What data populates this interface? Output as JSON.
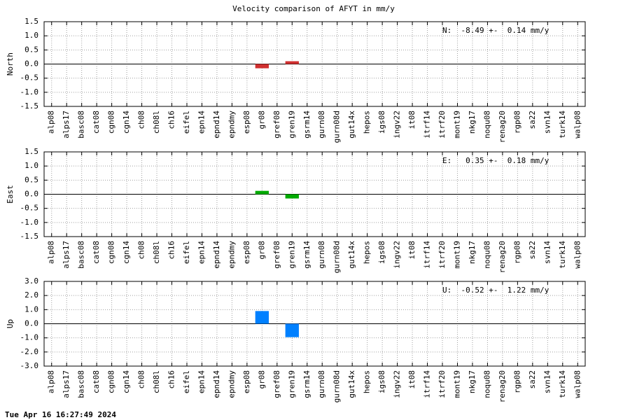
{
  "title": "Velocity comparison of AFYT in mm/y",
  "footer": "Tue Apr 16 16:27:49 2024",
  "chart_data": [
    {
      "type": "bar",
      "ylabel": "North",
      "annotation": "N:  -8.49 +-  0.14 mm/y",
      "categories": [
        "alp08",
        "alps17",
        "basc08",
        "cat08",
        "cgn08",
        "cgn14",
        "ch08",
        "ch08l",
        "ch16",
        "eifel",
        "epn14",
        "epnd14",
        "epndmy",
        "esp08",
        "gr08",
        "gref08",
        "gren19",
        "gsrm14",
        "gurn08",
        "gurn08d",
        "gut14x",
        "hepos",
        "igs08",
        "ingv22",
        "it08",
        "itrf14",
        "itrf20",
        "mont19",
        "nkg17",
        "noqu08",
        "renag20",
        "rgp08",
        "sa22",
        "svn14",
        "turk14",
        "walp08"
      ],
      "values": [
        null,
        null,
        null,
        null,
        null,
        null,
        null,
        null,
        null,
        null,
        null,
        null,
        null,
        null,
        -0.15,
        null,
        0.1,
        null,
        null,
        null,
        null,
        null,
        null,
        null,
        null,
        null,
        null,
        null,
        null,
        null,
        null,
        null,
        null,
        null,
        null,
        null
      ],
      "color": "#d03030",
      "ylim": [
        -1.5,
        1.5
      ],
      "yticks": [
        {
          "value": 1.5,
          "label": "1.5"
        },
        {
          "value": 1,
          "label": "1.0"
        },
        {
          "value": 0.5,
          "label": "0.5"
        },
        {
          "value": 0,
          "label": "0.0"
        },
        {
          "value": -0.5,
          "label": "-0.5"
        },
        {
          "value": -1,
          "label": "-1.0"
        },
        {
          "value": -1.5,
          "label": "-1.5"
        }
      ],
      "grid": true
    },
    {
      "type": "bar",
      "ylabel": "East",
      "annotation": "E:   0.35 +-  0.18 mm/y",
      "categories": [
        "alp08",
        "alps17",
        "basc08",
        "cat08",
        "cgn08",
        "cgn14",
        "ch08",
        "ch08l",
        "ch16",
        "eifel",
        "epn14",
        "epnd14",
        "epndmy",
        "esp08",
        "gr08",
        "gref08",
        "gren19",
        "gsrm14",
        "gurn08",
        "gurn08d",
        "gut14x",
        "hepos",
        "igs08",
        "ingv22",
        "it08",
        "itrf14",
        "itrf20",
        "mont19",
        "nkg17",
        "noqu08",
        "renag20",
        "rgp08",
        "sa22",
        "svn14",
        "turk14",
        "walp08"
      ],
      "values": [
        null,
        null,
        null,
        null,
        null,
        null,
        null,
        null,
        null,
        null,
        null,
        null,
        null,
        null,
        0.12,
        null,
        -0.15,
        null,
        null,
        null,
        null,
        null,
        null,
        null,
        null,
        null,
        null,
        null,
        null,
        null,
        null,
        null,
        null,
        null,
        null,
        null
      ],
      "color": "#00aa00",
      "ylim": [
        -1.5,
        1.5
      ],
      "yticks": [
        {
          "value": 1.5,
          "label": "1.5"
        },
        {
          "value": 1,
          "label": "1.0"
        },
        {
          "value": 0.5,
          "label": "0.5"
        },
        {
          "value": 0,
          "label": "0.0"
        },
        {
          "value": -0.5,
          "label": "-0.5"
        },
        {
          "value": -1,
          "label": "-1.0"
        },
        {
          "value": -1.5,
          "label": "-1.5"
        }
      ],
      "grid": true
    },
    {
      "type": "bar",
      "ylabel": "Up",
      "annotation": "U:  -0.52 +-  1.22 mm/y",
      "categories": [
        "alp08",
        "alps17",
        "basc08",
        "cat08",
        "cgn08",
        "cgn14",
        "ch08",
        "ch08l",
        "ch16",
        "eifel",
        "epn14",
        "epnd14",
        "epndmy",
        "esp08",
        "gr08",
        "gref08",
        "gren19",
        "gsrm14",
        "gurn08",
        "gurn08d",
        "gut14x",
        "hepos",
        "igs08",
        "ingv22",
        "it08",
        "itrf14",
        "itrf20",
        "mont19",
        "nkg17",
        "noqu08",
        "renag20",
        "rgp08",
        "sa22",
        "svn14",
        "turk14",
        "walp08"
      ],
      "values": [
        null,
        null,
        null,
        null,
        null,
        null,
        null,
        null,
        null,
        null,
        null,
        null,
        null,
        null,
        0.9,
        null,
        -0.95,
        null,
        null,
        null,
        null,
        null,
        null,
        null,
        null,
        null,
        null,
        null,
        null,
        null,
        null,
        null,
        null,
        null,
        null,
        null
      ],
      "color": "#0080ff",
      "ylim": [
        -3,
        3
      ],
      "yticks": [
        {
          "value": 3,
          "label": "3.0"
        },
        {
          "value": 2,
          "label": "2.0"
        },
        {
          "value": 1,
          "label": "1.0"
        },
        {
          "value": 0,
          "label": "0.0"
        },
        {
          "value": -1,
          "label": "-1.0"
        },
        {
          "value": -2,
          "label": "-2.0"
        },
        {
          "value": -3,
          "label": "-3.0"
        }
      ],
      "grid": true
    }
  ]
}
